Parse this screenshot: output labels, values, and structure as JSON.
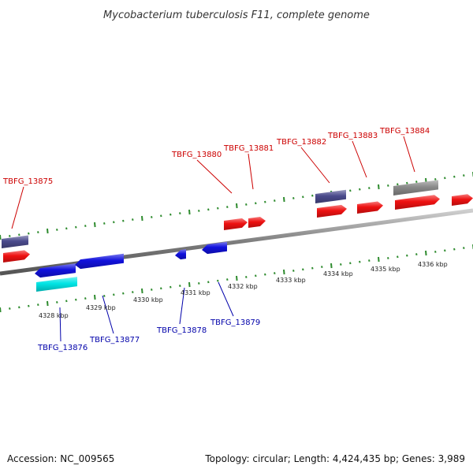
{
  "title": "Mycobacterium tuberculosis F11, complete genome",
  "footer": {
    "accession": "Accession: NC_009565",
    "summary": "Topology: circular; Length: 4,424,435 bp; Genes: 3,989"
  },
  "colors": {
    "backbone": "#8c8c8c",
    "tick": "#2e8b2e",
    "forward_label": "#cc0000",
    "reverse_label": "#0000aa",
    "red_gene": "#ee1111",
    "blue_gene": "#1111dd",
    "cyan_gene": "#00e5e5",
    "purple_gene": "#4a4a8c",
    "grey_gene": "#8a8a8a"
  },
  "ruler_labels": [
    "4328 kbp",
    "4329 kbp",
    "4330 kbp",
    "4331 kbp",
    "4332 kbp",
    "4333 kbp",
    "4334 kbp",
    "4335 kbp",
    "4336 kbp"
  ],
  "forward_labels": [
    "TBFG_13875",
    "TBFG_13880",
    "TBFG_13881",
    "TBFG_13882",
    "TBFG_13883",
    "TBFG_13884"
  ],
  "reverse_labels": [
    "TBFG_13876",
    "TBFG_13877",
    "TBFG_13878",
    "TBFG_13879"
  ]
}
